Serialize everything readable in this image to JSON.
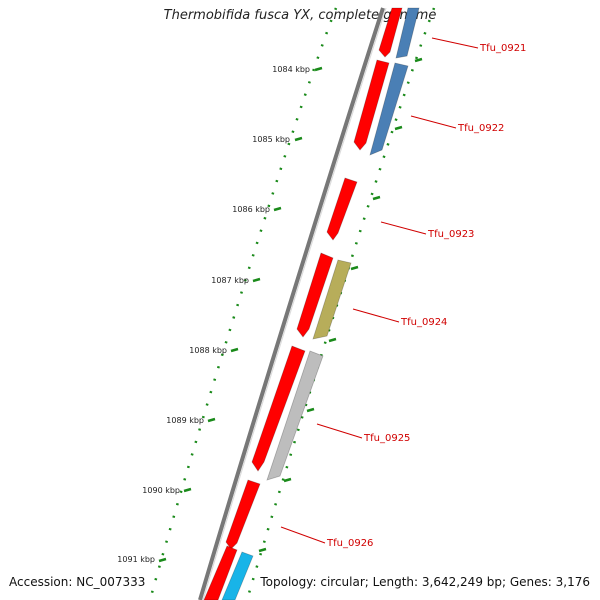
{
  "title": "Thermobifida fusca YX, complete genome",
  "accession": "Accession: NC_007333",
  "topology": "Topology: circular; Length: 3,642,249 bp; Genes: 3,176",
  "colors": {
    "backbone": "#777777",
    "ticks": "#1a8a1a",
    "label": "#d00000",
    "cds_red": "#ff0000",
    "blue": "#4a7fb5",
    "olive": "#b7ad5a",
    "silver": "#bdbdbd",
    "cyan": "#18b4e8"
  },
  "kbp_ticks": [
    "1084 kbp",
    "1085 kbp",
    "1086 kbp",
    "1087 kbp",
    "1088 kbp",
    "1089 kbp",
    "1090 kbp",
    "1091 kbp"
  ],
  "gene_labels": [
    "Tfu_0921",
    "Tfu_0922",
    "Tfu_0923",
    "Tfu_0924",
    "Tfu_0925",
    "Tfu_0926"
  ]
}
